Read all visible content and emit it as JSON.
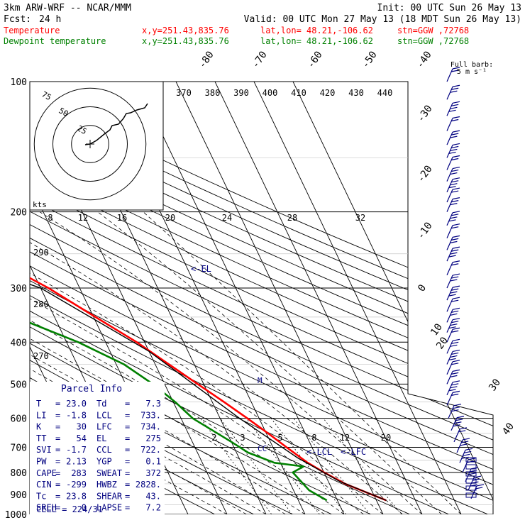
{
  "header": {
    "model": "3km ARW-WRF -- NCAR/MMM",
    "init": "Init: 00 UTC Sun 26 May 13",
    "fcst_label": "Fcst:",
    "fcst_value": "24 h",
    "valid": "Valid: 00 UTC Mon 27 May 13 (18 MDT Sun 26 May 13)",
    "temperature_line": {
      "name": "Temperature",
      "xy": "x,y=251.43,835.76",
      "latlon": "lat,lon= 48.21,-106.62",
      "stn": "stn=GGW ,72768",
      "color": "#ff0000"
    },
    "dewpoint_line": {
      "name": "Dewpoint temperature",
      "xy": "x,y=251.43,835.76",
      "latlon": "lat,lon= 48.21,-106.62",
      "stn": "stn=GGW ,72768",
      "color": "#008000"
    }
  },
  "full_barb_label": "Full barb:",
  "full_barb_value": "5 m s⁻¹",
  "hodograph": {
    "units": "kts",
    "ring_labels": [
      "75",
      "50",
      "25"
    ]
  },
  "parcel_info": {
    "title": "Parcel Info",
    "rows": [
      {
        "l1": "T",
        "v1": "23.0",
        "l2": "Td",
        "v2": "7.3"
      },
      {
        "l1": "LI",
        "v1": "-1.8",
        "l2": "LCL",
        "v2": "733."
      },
      {
        "l1": "K",
        "v1": "30",
        "l2": "LFC",
        "v2": "734."
      },
      {
        "l1": "TT",
        "v1": "54",
        "l2": "EL",
        "v2": "275"
      },
      {
        "l1": "SVI",
        "v1": "-1.7",
        "l2": "CCL",
        "v2": "722."
      },
      {
        "l1": "PW",
        "v1": "2.13",
        "l2": "YGP",
        "v2": "0.1"
      },
      {
        "l1": "CAPE",
        "v1": "283",
        "l2": "SWEAT",
        "v2": "372"
      },
      {
        "l1": "CIN",
        "v1": "-299",
        "l2": "HWBZ",
        "v2": "2828."
      },
      {
        "l1": "Tc",
        "v1": "23.8",
        "l2": "SHEAR",
        "v2": "43."
      },
      {
        "l1": "SREH",
        "v1": "0",
        "l2": "LAPSE",
        "v2": "7.2"
      }
    ],
    "cell": "CELL = 224/31"
  },
  "annotations": {
    "el": "<-EL",
    "lcl": "<-LCL",
    "lfc": "<-LFC",
    "ccl": "CC",
    "m_marker": "M"
  },
  "chart_data": {
    "type": "line",
    "subtype": "skew-T log-P",
    "pressure_axis": {
      "ticks": [
        100,
        200,
        300,
        400,
        500,
        600,
        700,
        800,
        900,
        1000
      ],
      "scale": "log",
      "range": [
        100,
        1000
      ]
    },
    "isotherm_labels": [
      "-80",
      "-70",
      "-60",
      "-50",
      "-40",
      "-30",
      "-20",
      "-10",
      "0",
      "10",
      "20",
      "30",
      "40"
    ],
    "theta_e_labels": [
      "370",
      "380",
      "390",
      "400",
      "410",
      "420",
      "430",
      "440"
    ],
    "mixing_ratio_labels_upper": [
      "8",
      "12",
      "16",
      "20",
      "24",
      "28",
      "32"
    ],
    "mixing_ratio_labels_lower": [
      "2",
      "3",
      "5",
      "8",
      "12",
      "20"
    ],
    "theta_labels": [
      "290",
      "280",
      "270"
    ],
    "series": [
      {
        "name": "Temperature",
        "color": "#ff0000",
        "points": [
          {
            "p": 928,
            "t": 22.5
          },
          {
            "p": 900,
            "t": 19.5
          },
          {
            "p": 850,
            "t": 14.0
          },
          {
            "p": 800,
            "t": 10.0
          },
          {
            "p": 760,
            "t": 7.0
          },
          {
            "p": 700,
            "t": 3.5
          },
          {
            "p": 650,
            "t": 0.5
          },
          {
            "p": 600,
            "t": -3.0
          },
          {
            "p": 550,
            "t": -7.0
          },
          {
            "p": 500,
            "t": -11.5
          },
          {
            "p": 450,
            "t": -16.5
          },
          {
            "p": 400,
            "t": -22.0
          },
          {
            "p": 350,
            "t": -29.5
          },
          {
            "p": 300,
            "t": -38.0
          },
          {
            "p": 270,
            "t": -45.0
          },
          {
            "p": 250,
            "t": -50.0
          },
          {
            "p": 230,
            "t": -53.0
          },
          {
            "p": 200,
            "t": -55.0
          },
          {
            "p": 170,
            "t": -56.0
          },
          {
            "p": 150,
            "t": -58.0
          },
          {
            "p": 130,
            "t": -59.5
          },
          {
            "p": 115,
            "t": -61.0
          },
          {
            "p": 100,
            "t": -63.0
          }
        ]
      },
      {
        "name": "Dewpoint temperature",
        "color": "#008000",
        "points": [
          {
            "p": 928,
            "t": 7.3
          },
          {
            "p": 880,
            "t": 4.0
          },
          {
            "p": 800,
            "t": 2.0
          },
          {
            "p": 775,
            "t": 5.5
          },
          {
            "p": 760,
            "t": -1.5
          },
          {
            "p": 720,
            "t": -7.0
          },
          {
            "p": 680,
            "t": -10.0
          },
          {
            "p": 600,
            "t": -17.0
          },
          {
            "p": 550,
            "t": -19.5
          },
          {
            "p": 500,
            "t": -23.0
          },
          {
            "p": 450,
            "t": -28.0
          },
          {
            "p": 400,
            "t": -37.0
          },
          {
            "p": 350,
            "t": -50.0
          },
          {
            "p": 300,
            "t": -62.0
          },
          {
            "p": 250,
            "t": -72.0
          },
          {
            "p": 200,
            "t": -80.0
          },
          {
            "p": 160,
            "t": -86.0
          },
          {
            "p": 130,
            "t": -88.0
          },
          {
            "p": 110,
            "t": -87.0
          },
          {
            "p": 100,
            "t": -85.0
          }
        ]
      }
    ],
    "wind_barbs": {
      "color": "#000080",
      "levels": [
        100,
        110,
        120,
        130,
        140,
        150,
        160,
        170,
        180,
        190,
        200,
        215,
        230,
        245,
        260,
        280,
        300,
        320,
        340,
        360,
        380,
        400,
        425,
        450,
        475,
        500,
        530,
        560,
        600,
        640,
        680,
        720,
        760,
        800,
        840,
        880,
        920
      ]
    }
  }
}
